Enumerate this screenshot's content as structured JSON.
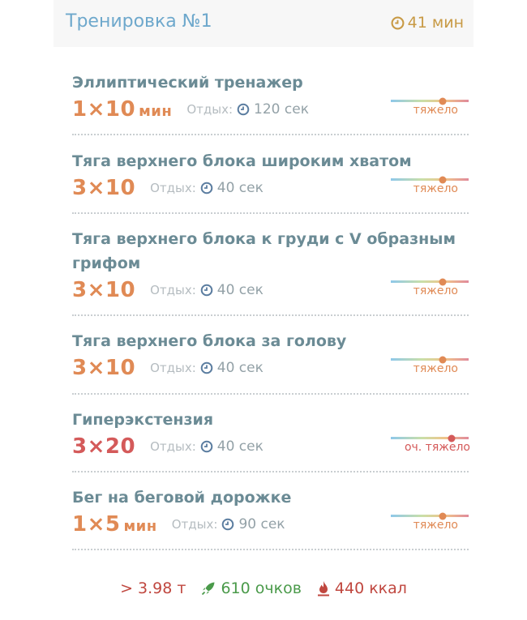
{
  "header": {
    "title": "Тренировка №1",
    "duration": "41 мин"
  },
  "colors": {
    "title": "#6ea8cc",
    "duration": "#c89a45",
    "heavy": "#e08a55",
    "very_heavy": "#d45a5a",
    "name": "#6b8b95"
  },
  "exercises": [
    {
      "name": "Эллиптический тренажер",
      "sets": "1×10",
      "unit": "мин",
      "rest_label": "Отдых:",
      "rest": "120 сек",
      "difficulty": "тяжело",
      "level": "heavy"
    },
    {
      "name": "Тяга верхнего блока широким хватом",
      "sets": "3×10",
      "unit": "",
      "rest_label": "Отдых:",
      "rest": "40 сек",
      "difficulty": "тяжело",
      "level": "heavy"
    },
    {
      "name_line1": "Тяга верхнего блока к груди с V образным",
      "name_line2": "грифом",
      "sets": "3×10",
      "unit": "",
      "rest_label": "Отдых:",
      "rest": "40 сек",
      "difficulty": "тяжело",
      "level": "heavy"
    },
    {
      "name": "Тяга верхнего блока за голову",
      "sets": "3×10",
      "unit": "",
      "rest_label": "Отдых:",
      "rest": "40 сек",
      "difficulty": "тяжело",
      "level": "heavy"
    },
    {
      "name": "Гиперэкстензия",
      "sets": "3×20",
      "unit": "",
      "rest_label": "Отдых:",
      "rest": "40 сек",
      "difficulty": "оч. тяжело",
      "level": "very_heavy"
    },
    {
      "name": "Бег на беговой дорожке",
      "sets": "1×5",
      "unit": "мин",
      "rest_label": "Отдых:",
      "rest": "90 сек",
      "difficulty": "тяжело",
      "level": "heavy"
    }
  ],
  "footer": {
    "tonnage": "> 3.98 т",
    "points": "610 очков",
    "calories": "440 ккал"
  }
}
